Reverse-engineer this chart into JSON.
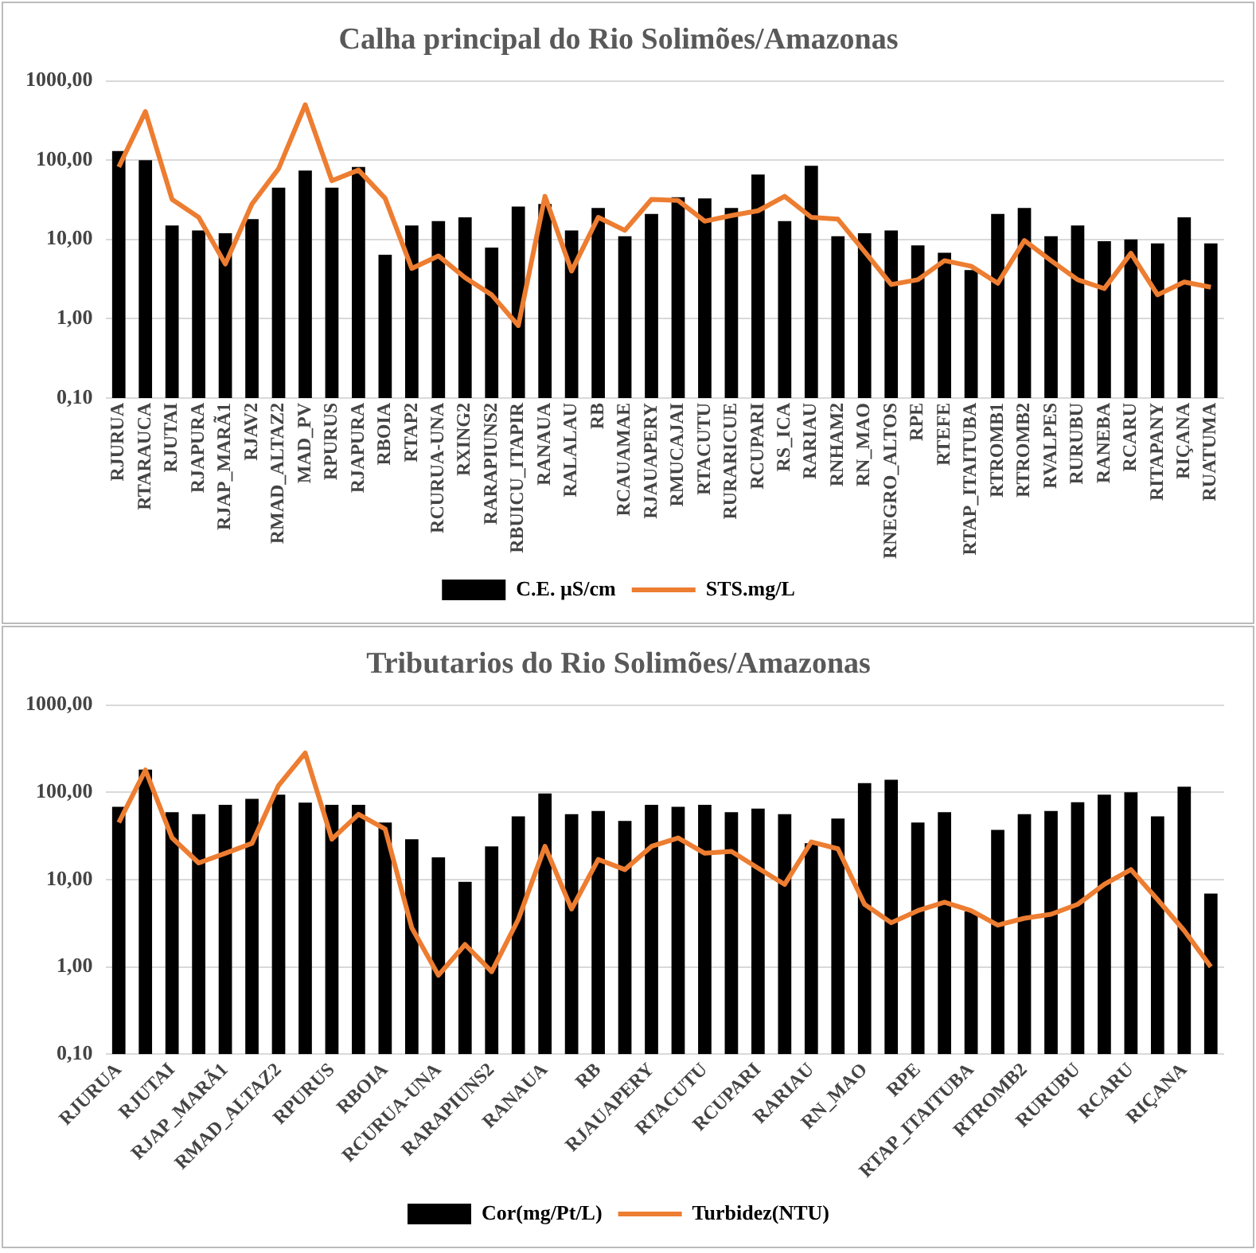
{
  "chart_data": [
    {
      "type": "bar",
      "title": "Calha principal do Rio Solimões/Amazonas",
      "categories": [
        "RJURUA",
        "RTARAUCA",
        "RJUTAI",
        "RJAPURA",
        "RJAP_MARÃ1",
        "RJAV2",
        "RMAD_ALTAZ2",
        "MAD_PV",
        "RPURUS",
        "RJAPURA",
        "RBOIA",
        "RTAP2",
        "RCURUA-UNA",
        "RXING2",
        "RARAPIUNS2",
        "RBUICU_ITAPIR",
        "RANAUA",
        "RALALAU",
        "RB",
        "RCAUAMAE",
        "RJAUAPERY",
        "RMUCAJAI",
        "RTACUTU",
        "RURARICUE",
        "RCUPARI",
        "RS_ICA",
        "RARIAU",
        "RNHAM2",
        "RN_MAO",
        "RNEGRO_ALTOS",
        "RPE",
        "RTEFE",
        "RTAP_ITAITUBA",
        "RTROMB1",
        "RTROMB2",
        "RVALPES",
        "RURUBU",
        "RANEBA",
        "RCARU",
        "RITAPANY",
        "RIÇANA",
        "RUATUMA"
      ],
      "series": [
        {
          "name": "C.E. µS/cm",
          "color": "#000000",
          "values": [
            130,
            100,
            15,
            13,
            12,
            18,
            45,
            74,
            45,
            82,
            6.4,
            15,
            17,
            19,
            7.9,
            26,
            28,
            13,
            25,
            11,
            21,
            34,
            33,
            25,
            66,
            17,
            85,
            11,
            12,
            13,
            8.4,
            6.8,
            4.1,
            21,
            25,
            11,
            15,
            9.5,
            10,
            8.9,
            19,
            8.9
          ]
        },
        {
          "name": "STS.mg/L",
          "type": "line",
          "color": "#ed7d31",
          "values": [
            82,
            410,
            32,
            19,
            4.9,
            28,
            78,
            500,
            55,
            75,
            33,
            4.3,
            6.2,
            3.3,
            2.0,
            0.82,
            35,
            4.0,
            19,
            13,
            32,
            31,
            17,
            20,
            23,
            35,
            19,
            18,
            7,
            2.7,
            3.1,
            5.4,
            4.6,
            2.8,
            9.7,
            5.4,
            3.1,
            2.4,
            6.7,
            2.0,
            2.9,
            2.5
          ]
        }
      ],
      "log": "y",
      "ylim": [
        0.1,
        1000
      ],
      "yticks": [
        {
          "value": 0.1,
          "label": "0,10"
        },
        {
          "value": 1,
          "label": "1,00"
        },
        {
          "value": 10,
          "label": "10,00"
        },
        {
          "value": 100,
          "label": "100,00"
        },
        {
          "value": 1000,
          "label": "1000,00"
        }
      ],
      "grid": "y",
      "legend": "bottom",
      "marker": "none",
      "line_style": "solid"
    },
    {
      "type": "bar",
      "title": "Tributarios do Rio Solimões/Amazonas",
      "categories": [
        "RJURUA",
        null,
        "RJUTAI",
        null,
        "RJAP_MARÃ1",
        null,
        "RMAD_ALTAZ2",
        null,
        "RPURUS",
        null,
        "RBOIA",
        null,
        "RCURUA-UNA",
        null,
        "RARAPIUNS2",
        null,
        "RANAUA",
        null,
        "RB",
        null,
        "RJAUAPERY",
        null,
        "RTACUTU",
        null,
        "RCUPARI",
        null,
        "RARIAU",
        null,
        "RN_MAO",
        null,
        "RPE",
        null,
        "RTAP_ITAITUBA",
        null,
        "RTROMB2",
        null,
        "RURUBU",
        null,
        "RCARU",
        null,
        "RIÇANA",
        null
      ],
      "series": [
        {
          "name": "Cor(mg/Pt/L)",
          "color": "#000000",
          "values": [
            68,
            182,
            59,
            56,
            72,
            84,
            94,
            76,
            72,
            72,
            45,
            29,
            18,
            9.4,
            24,
            53,
            97,
            56,
            61,
            47,
            72,
            68,
            72,
            59,
            65,
            56,
            26,
            50,
            127,
            139,
            45,
            59,
            4.3,
            37,
            56,
            61,
            77,
            94,
            100,
            53,
            116,
            6.9
          ]
        },
        {
          "name": "Turbidez(NTU)",
          "type": "line",
          "color": "#ed7d31",
          "values": [
            45,
            180,
            30,
            15.5,
            20,
            26,
            120,
            282,
            29,
            56,
            38,
            2.8,
            0.8,
            1.8,
            0.88,
            3.5,
            24,
            4.6,
            17,
            13,
            24,
            30,
            20,
            21,
            13.5,
            8.8,
            27,
            22.5,
            5.2,
            3.2,
            4.4,
            5.5,
            4.4,
            3.0,
            3.6,
            4.0,
            5.2,
            8.8,
            13,
            5.9,
            2.6,
            1.0
          ]
        }
      ],
      "log": "y",
      "ylim": [
        0.1,
        1000
      ],
      "yticks": [
        {
          "value": 0.1,
          "label": "0,10"
        },
        {
          "value": 1,
          "label": "1,00"
        },
        {
          "value": 10,
          "label": "10,00"
        },
        {
          "value": 100,
          "label": "100,00"
        },
        {
          "value": 1000,
          "label": "1000,00"
        }
      ],
      "grid": "y",
      "legend": "bottom",
      "marker": "none",
      "line_style": "solid"
    }
  ]
}
